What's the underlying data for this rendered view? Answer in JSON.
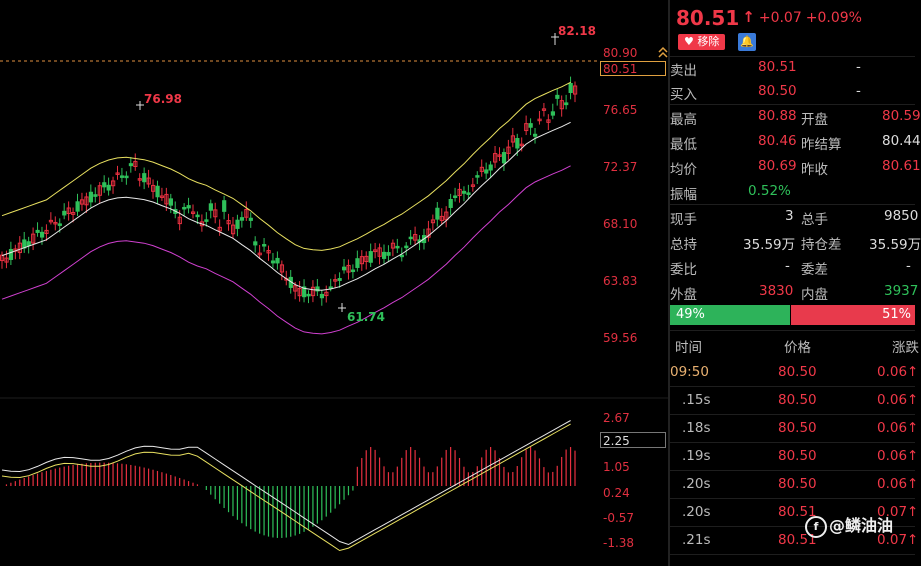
{
  "chart_data": {
    "type": "candlestick",
    "price_axis": {
      "ticks": [
        "80.90",
        "76.65",
        "72.37",
        "68.10",
        "63.83",
        "59.56"
      ]
    },
    "current_price_tag": "80.51",
    "high_marker": "82.18",
    "left_high_marker": "76.98",
    "low_marker": "61.74",
    "macd_axis": {
      "ticks": [
        "2.67",
        "1.05",
        "0.24",
        "-0.57",
        "-1.38"
      ]
    },
    "macd_current_tag": "2.25",
    "colors": {
      "up": "#e83040",
      "down": "#2fc05a",
      "upper_band": "#e8e060",
      "mid_band": "#e8e8e8",
      "lower_band": "#d040d0",
      "dif": "#e8e8e8",
      "dea": "#e8e060"
    }
  },
  "quote": {
    "price": "80.51",
    "arrow": "↑",
    "change": "+0.07",
    "change_pct": "+0.09%",
    "remove_label": "移除",
    "bell_icon": "bell-icon"
  },
  "order_book": [
    {
      "label": "卖出",
      "value": "80.51",
      "extra": "-"
    },
    {
      "label": "买入",
      "value": "80.50",
      "extra": "-"
    }
  ],
  "stats": [
    {
      "l1": "最高",
      "v1": "80.88",
      "l2": "开盘",
      "v2": "80.59"
    },
    {
      "l1": "最低",
      "v1": "80.46",
      "l2": "昨结算",
      "v2": "80.44"
    },
    {
      "l1": "均价",
      "v1": "80.69",
      "l2": "昨收",
      "v2": "80.61"
    }
  ],
  "amplitude": {
    "label": "振幅",
    "value": "0.52%"
  },
  "volume_stats": [
    {
      "l1": "现手",
      "v1": "3",
      "l2": "总手",
      "v2": "9850"
    },
    {
      "l1": "总持",
      "v1": "35.59万",
      "l2": "持仓差",
      "v2": "35.59万"
    },
    {
      "l1": "委比",
      "v1": "-",
      "l2": "委差",
      "v2": "-"
    }
  ],
  "outer_inner": {
    "l1": "外盘",
    "v1": "3830",
    "l2": "内盘",
    "v2": "3937"
  },
  "ratio": {
    "green_pct": "49%",
    "red_pct": "51%",
    "green_value": 49
  },
  "ticks_header": {
    "time": "时间",
    "price": "价格",
    "change": "涨跌"
  },
  "ticks": [
    {
      "time": "09:50",
      "price": "80.50",
      "change": "0.06↑"
    },
    {
      "time": ".15s",
      "price": "80.50",
      "change": "0.06↑"
    },
    {
      "time": ".18s",
      "price": "80.50",
      "change": "0.06↑"
    },
    {
      "time": ".19s",
      "price": "80.50",
      "change": "0.06↑"
    },
    {
      "time": ".20s",
      "price": "80.50",
      "change": "0.06↑"
    },
    {
      "time": ".20s",
      "price": "80.51",
      "change": "0.07↑"
    },
    {
      "time": ".21s",
      "price": "80.51",
      "change": "0.07↑"
    }
  ],
  "watermark": {
    "text": "@鳞油油"
  }
}
